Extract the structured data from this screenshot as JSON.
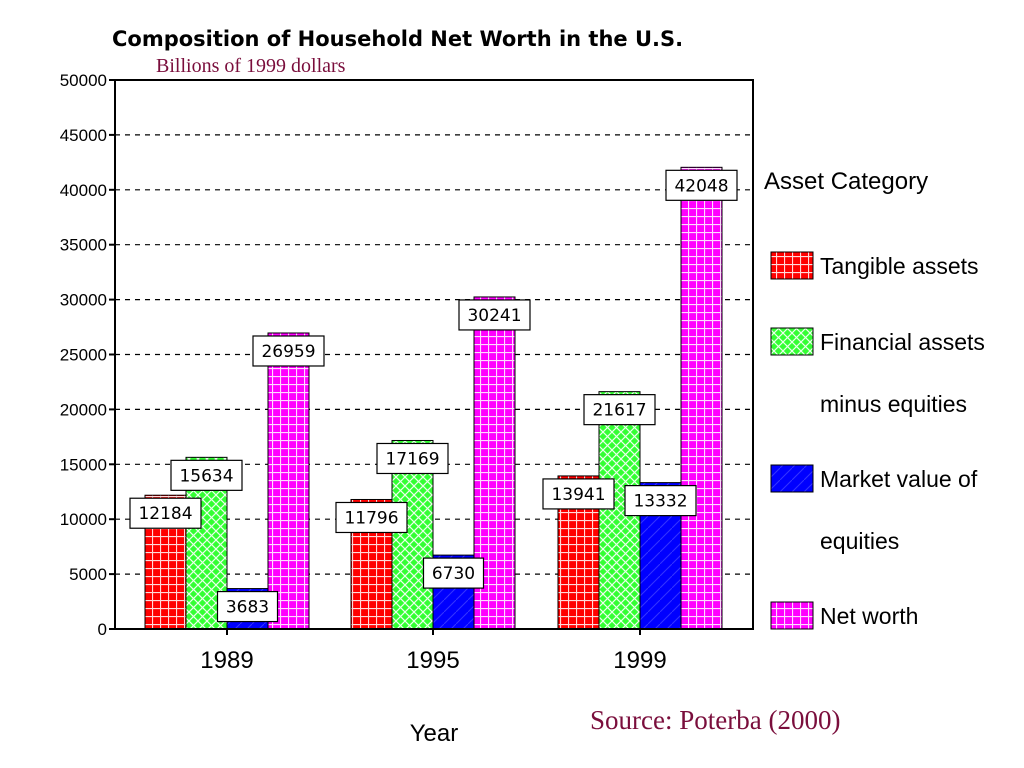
{
  "chart_data": {
    "type": "bar",
    "title": "Composition of Household Net Worth in the U.S.",
    "subtitle": "Billions of 1999 dollars",
    "xlabel": "Year",
    "ylabel": "",
    "categories": [
      "1989",
      "1995",
      "1999"
    ],
    "ylim": [
      0,
      50000
    ],
    "yticks": [
      "50000",
      "45000",
      "40000",
      "35000",
      "30000",
      "25000",
      "20000",
      "15000",
      "10000",
      "5000",
      "0"
    ],
    "grid": true,
    "legend": {
      "title": "Asset Category",
      "placement": "right"
    },
    "series": [
      {
        "name": "Tangible assets",
        "legend_lines": [
          "Tangible assets"
        ],
        "values": [
          12184,
          11796,
          13941
        ],
        "color": "#ff0000",
        "pattern": "grid"
      },
      {
        "name": "Financial assets minus equities",
        "legend_lines": [
          "Financial assets",
          "minus equities"
        ],
        "values": [
          15634,
          17169,
          21617
        ],
        "color": "#33ff33",
        "pattern": "cross"
      },
      {
        "name": "Market value of equities",
        "legend_lines": [
          "Market value of",
          "equities"
        ],
        "values": [
          3683,
          6730,
          13332
        ],
        "color": "#0000ff",
        "pattern": "diag"
      },
      {
        "name": "Net worth",
        "legend_lines": [
          "Net worth"
        ],
        "values": [
          26959,
          30241,
          42048
        ],
        "color": "#ff00ff",
        "pattern": "grid"
      }
    ],
    "source": "Source: Poterba (2000)"
  }
}
